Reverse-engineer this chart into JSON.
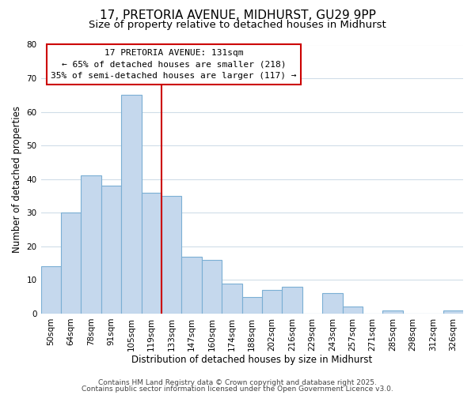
{
  "title": "17, PRETORIA AVENUE, MIDHURST, GU29 9PP",
  "subtitle": "Size of property relative to detached houses in Midhurst",
  "xlabel": "Distribution of detached houses by size in Midhurst",
  "ylabel": "Number of detached properties",
  "categories": [
    "50sqm",
    "64sqm",
    "78sqm",
    "91sqm",
    "105sqm",
    "119sqm",
    "133sqm",
    "147sqm",
    "160sqm",
    "174sqm",
    "188sqm",
    "202sqm",
    "216sqm",
    "229sqm",
    "243sqm",
    "257sqm",
    "271sqm",
    "285sqm",
    "298sqm",
    "312sqm",
    "326sqm"
  ],
  "values": [
    14,
    30,
    41,
    38,
    65,
    36,
    35,
    17,
    16,
    9,
    5,
    7,
    8,
    0,
    6,
    2,
    0,
    1,
    0,
    0,
    1
  ],
  "bar_color": "#c5d8ed",
  "bar_edge_color": "#7bafd4",
  "vline_x": 5.5,
  "vline_color": "#cc0000",
  "ylim": [
    0,
    80
  ],
  "yticks": [
    0,
    10,
    20,
    30,
    40,
    50,
    60,
    70,
    80
  ],
  "annotation_line1": "17 PRETORIA AVENUE: 131sqm",
  "annotation_line2": "← 65% of detached houses are smaller (218)",
  "annotation_line3": "35% of semi-detached houses are larger (117) →",
  "footer1": "Contains HM Land Registry data © Crown copyright and database right 2025.",
  "footer2": "Contains public sector information licensed under the Open Government Licence v3.0.",
  "bg_color": "#ffffff",
  "grid_color": "#d0dde8",
  "title_fontsize": 11,
  "subtitle_fontsize": 9.5,
  "axis_label_fontsize": 8.5,
  "tick_fontsize": 7.5,
  "annotation_fontsize": 8,
  "footer_fontsize": 6.5
}
